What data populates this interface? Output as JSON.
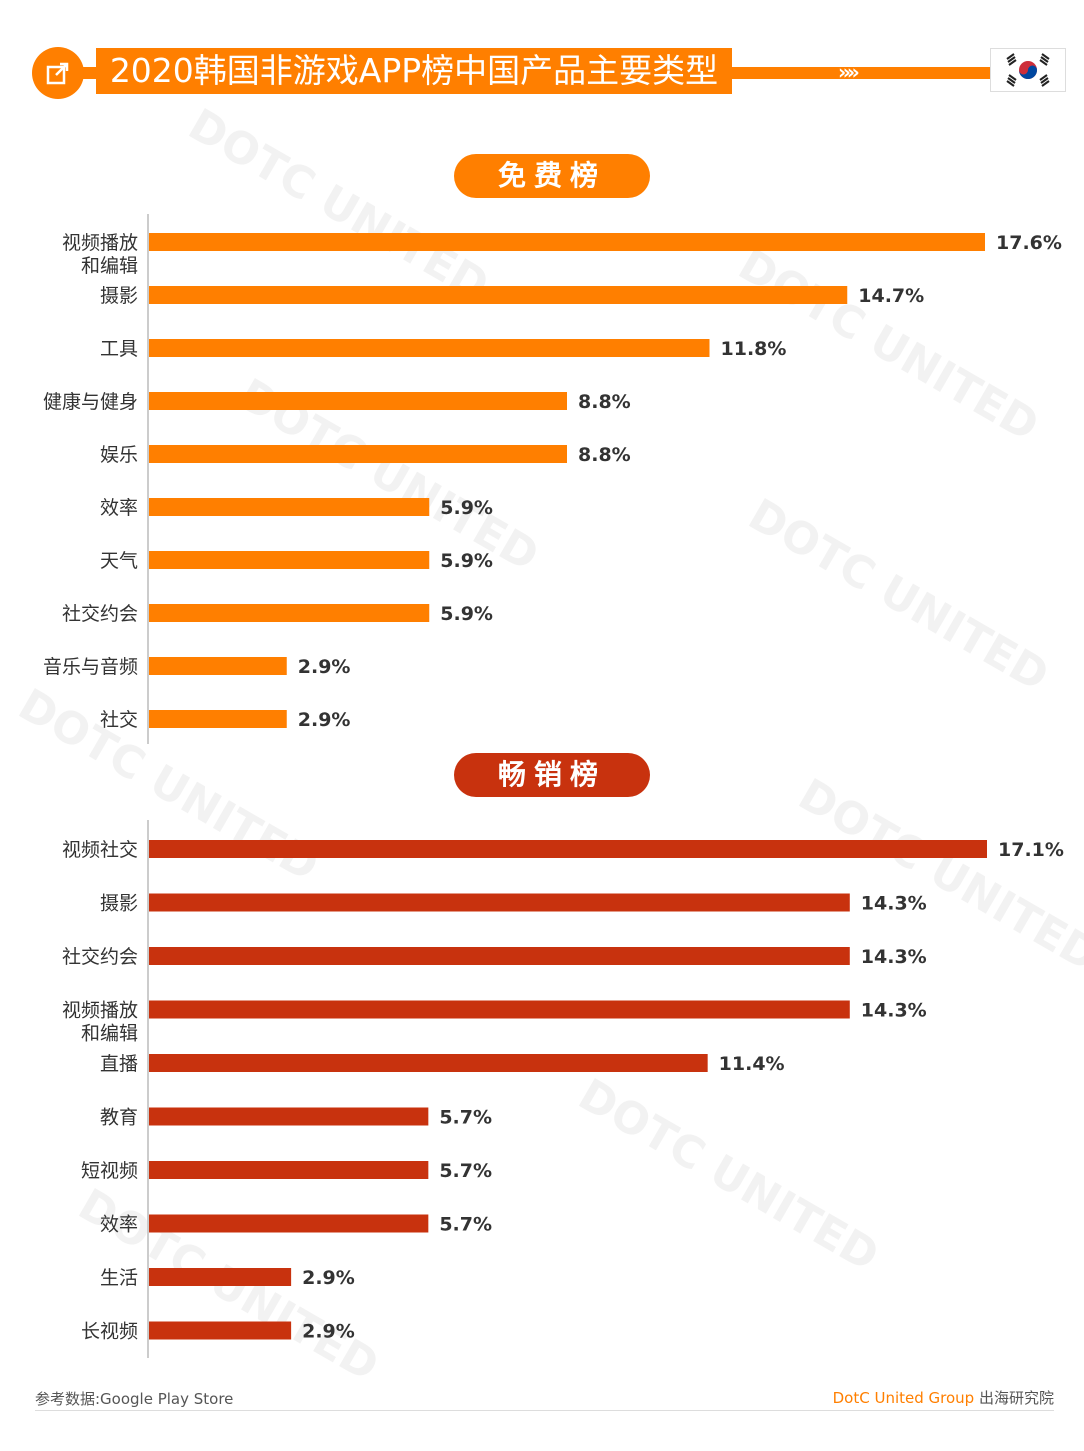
{
  "header": {
    "title": "2020韩国非游戏APP榜中国产品主要类型",
    "arrows": "»»"
  },
  "colors": {
    "accent": "#ff7f00",
    "free_bar": "#ff7f00",
    "grossing_bar": "#c8320e"
  },
  "watermark": "DOTC UNITED",
  "chart_data": [
    {
      "type": "bar",
      "orientation": "horizontal",
      "title": "免费榜",
      "categories": [
        "视频播放\n和编辑",
        "摄影",
        "工具",
        "健康与健身",
        "娱乐",
        "效率",
        "天气",
        "社交约会",
        "音乐与音频",
        "社交"
      ],
      "values": [
        17.6,
        14.7,
        11.8,
        8.8,
        8.8,
        5.9,
        5.9,
        5.9,
        2.9,
        2.9
      ],
      "value_labels": [
        "17.6%",
        "14.7%",
        "11.8%",
        "8.8%",
        "8.8%",
        "5.9%",
        "5.9%",
        "5.9%",
        "2.9%",
        "2.9%"
      ],
      "xlim": [
        0,
        17.6
      ]
    },
    {
      "type": "bar",
      "orientation": "horizontal",
      "title": "畅销榜",
      "categories": [
        "视频社交",
        "摄影",
        "社交约会",
        "视频播放\n和编辑",
        "直播",
        "教育",
        "短视频",
        "效率",
        "生活",
        "长视频"
      ],
      "values": [
        17.1,
        14.3,
        14.3,
        14.3,
        11.4,
        5.7,
        5.7,
        5.7,
        2.9,
        2.9
      ],
      "value_labels": [
        "17.1%",
        "14.3%",
        "14.3%",
        "14.3%",
        "11.4%",
        "5.7%",
        "5.7%",
        "5.7%",
        "2.9%",
        "2.9%"
      ],
      "xlim": [
        0,
        17.1
      ]
    }
  ],
  "footer": {
    "source": "参考数据:Google Play Store",
    "brand": "DotC United Group",
    "institute": "出海研究院"
  }
}
